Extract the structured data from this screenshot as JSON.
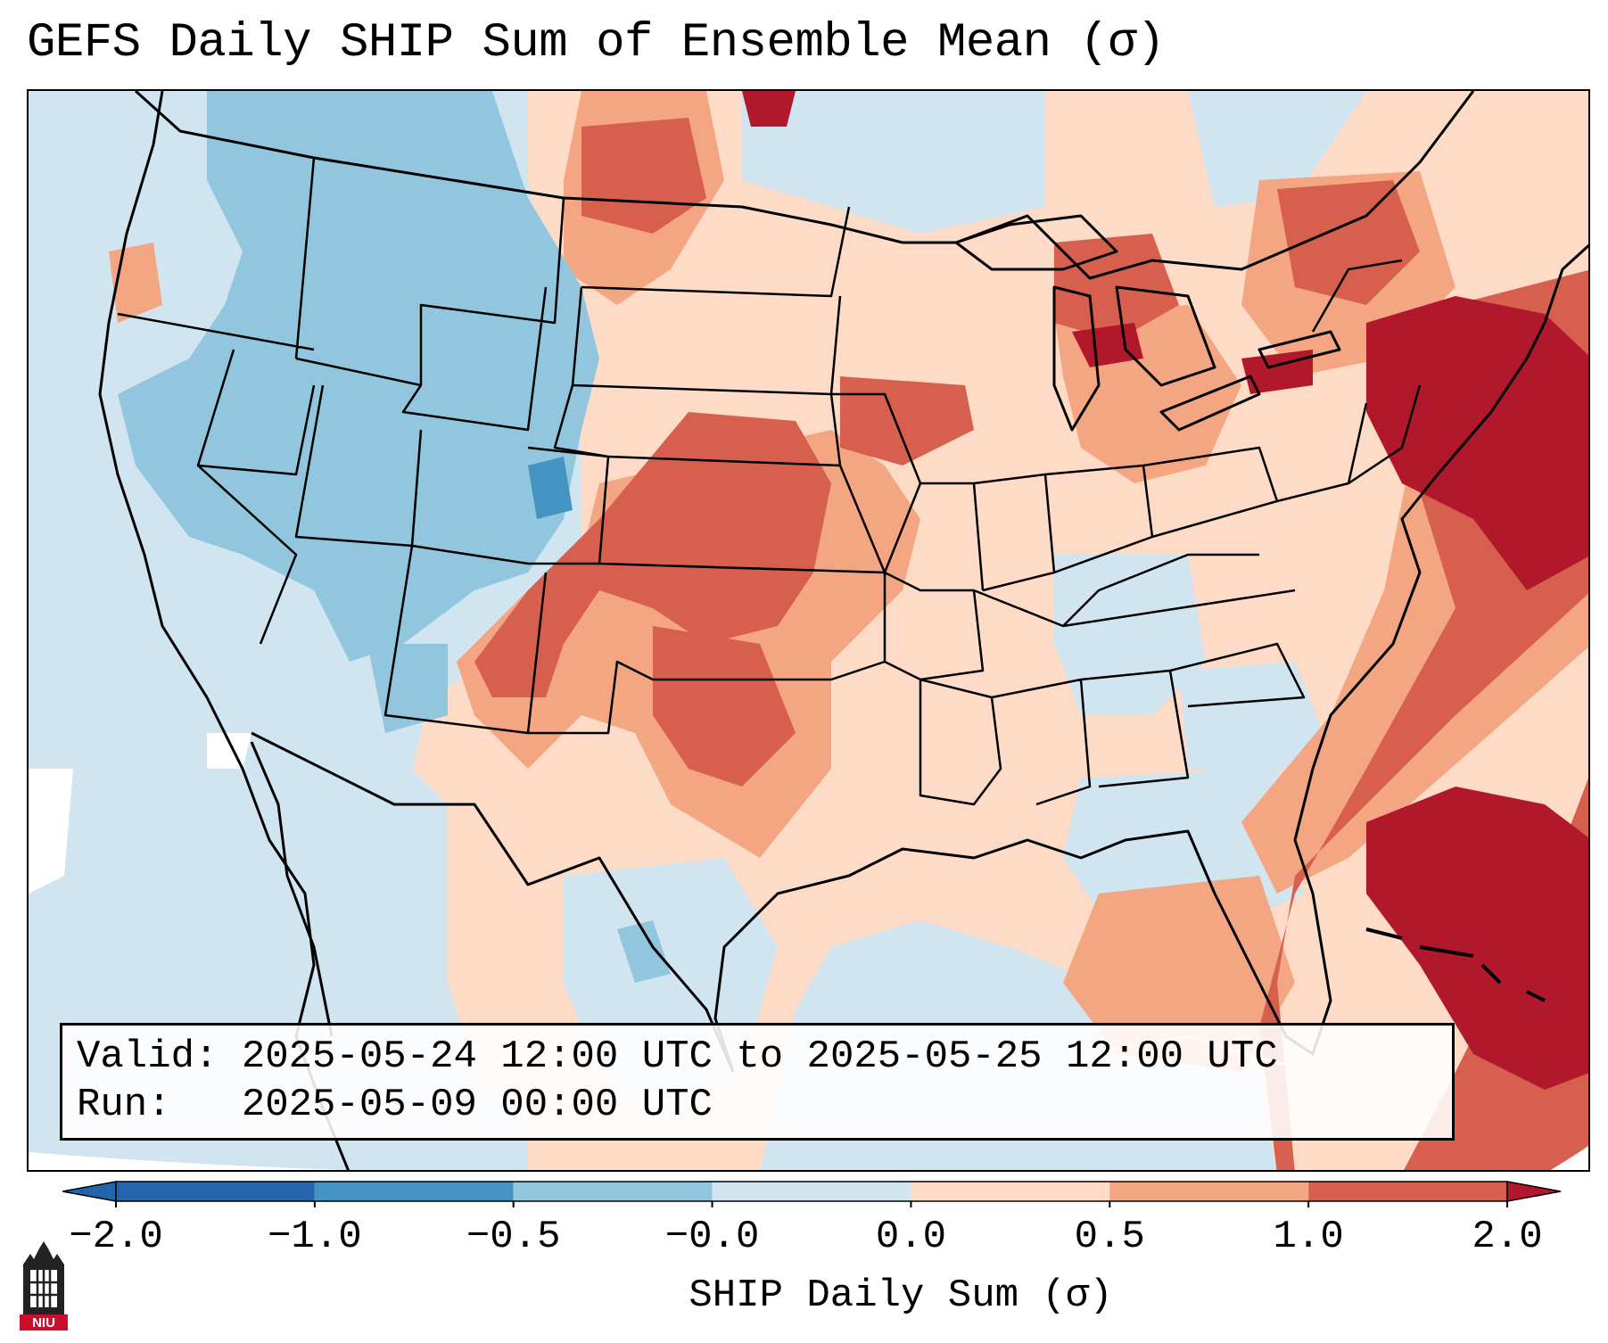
{
  "title": "GEFS Daily SHIP Sum of Ensemble Mean (σ)",
  "info": {
    "valid_label": "Valid:",
    "valid_value": "2025-05-24 12:00 UTC to 2025-05-25 12:00 UTC",
    "run_label": "Run:",
    "run_value": "2025-05-09 00:00 UTC"
  },
  "colorbar": {
    "label": "SHIP Daily Sum (σ)",
    "ticks": [
      "−2.0",
      "−1.0",
      "−0.5",
      "−0.0",
      "0.0",
      "0.5",
      "1.0",
      "2.0"
    ],
    "colors": [
      "#2166ac",
      "#4393c3",
      "#92c5de",
      "#d1e5f0",
      "#fddbc7",
      "#f4a582",
      "#d6604d",
      "#b2182b"
    ],
    "extend": "both"
  },
  "logo": {
    "text": "NIU",
    "icon": "niu-building-logo-icon",
    "color": "#c8102e"
  },
  "map": {
    "projection": "lambert-conformal-conus",
    "field": "SHIP daily sum anomaly",
    "background_color": "#d1e5f0",
    "boundary_color": "#000000"
  }
}
